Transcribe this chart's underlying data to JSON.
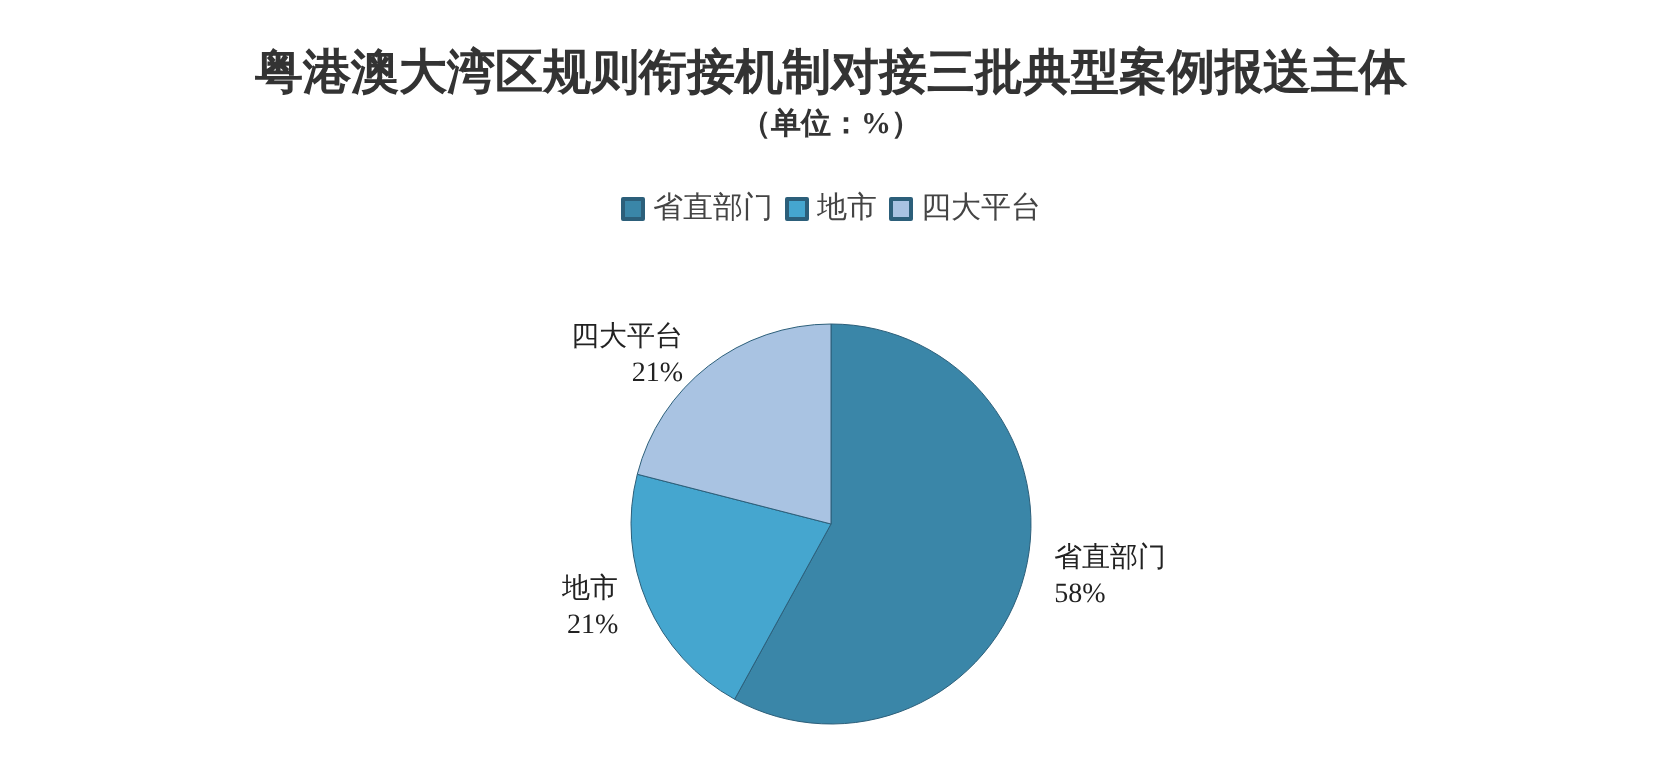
{
  "chart_data": {
    "type": "pie",
    "title": "粤港澳大湾区规则衔接机制对接三批典型案例报送主体",
    "subtitle": "（单位：%）",
    "categories": [
      "省直部门",
      "地市",
      "四大平台"
    ],
    "values": [
      58,
      21,
      21
    ],
    "value_labels": [
      "58%",
      "21%",
      "21%"
    ],
    "colors": [
      "#3a86a8",
      "#45a6cf",
      "#a9c3e2"
    ],
    "legend": "top"
  }
}
